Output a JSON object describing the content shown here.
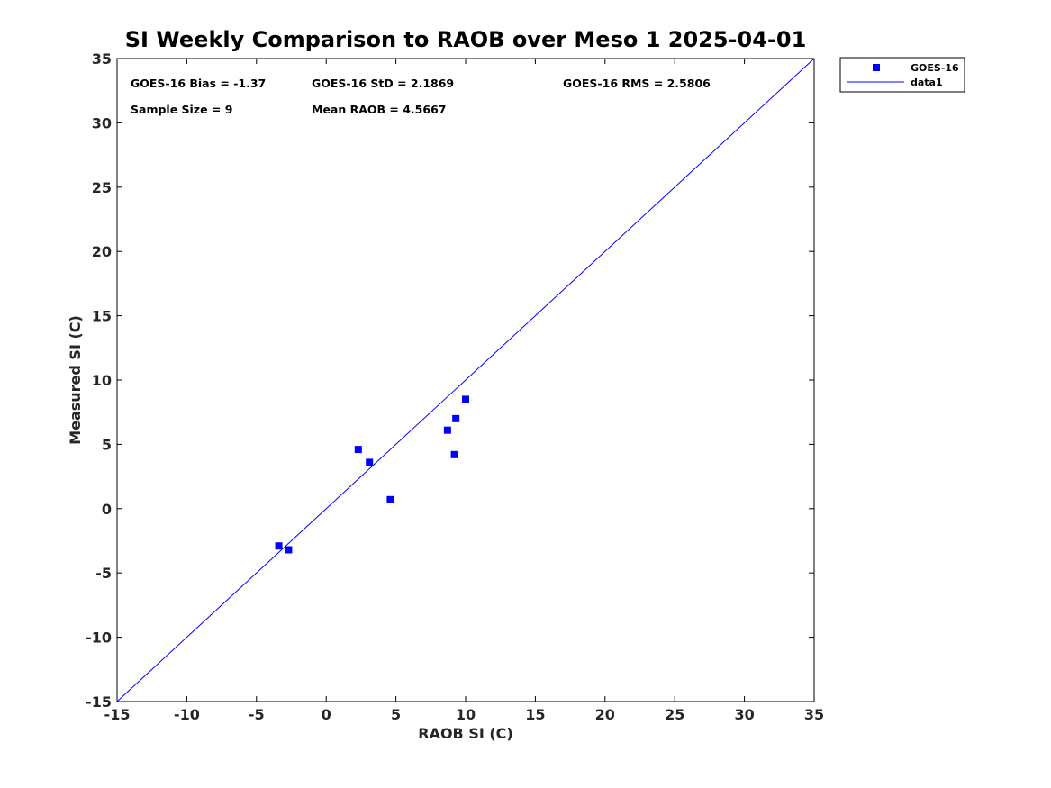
{
  "chart_data": {
    "type": "scatter",
    "title": "SI Weekly Comparison to RAOB over Meso 1 2025-04-01",
    "xlabel": "RAOB SI (C)",
    "ylabel": "Measured SI (C)",
    "xlim": [
      -15,
      35
    ],
    "ylim": [
      -15,
      35
    ],
    "xticks": [
      -15,
      -10,
      -5,
      0,
      5,
      10,
      15,
      20,
      25,
      30,
      35
    ],
    "yticks": [
      -15,
      -10,
      -5,
      0,
      5,
      10,
      15,
      20,
      25,
      30,
      35
    ],
    "series": [
      {
        "name": "GOES-16",
        "marker": "square",
        "color": "#0000ff",
        "points": [
          [
            -3.4,
            -2.9
          ],
          [
            -2.7,
            -3.2
          ],
          [
            2.3,
            4.6
          ],
          [
            3.1,
            3.6
          ],
          [
            4.6,
            0.7
          ],
          [
            8.7,
            6.1
          ],
          [
            9.2,
            4.2
          ],
          [
            9.3,
            7.0
          ],
          [
            10.0,
            8.5
          ]
        ]
      },
      {
        "name": "data1",
        "marker": "line",
        "color": "#0000ff",
        "points": [
          [
            -15,
            -15
          ],
          [
            35,
            35
          ]
        ]
      }
    ],
    "annotations": {
      "bias": "GOES-16 Bias = -1.37",
      "std": "GOES-16 StD = 2.1869",
      "rms": "GOES-16 RMS = 2.5806",
      "sample": "Sample Size = 9",
      "mean": "Mean RAOB = 4.5667"
    },
    "legend": {
      "position": "outside-top-right",
      "entries": [
        "GOES-16",
        "data1"
      ]
    }
  }
}
